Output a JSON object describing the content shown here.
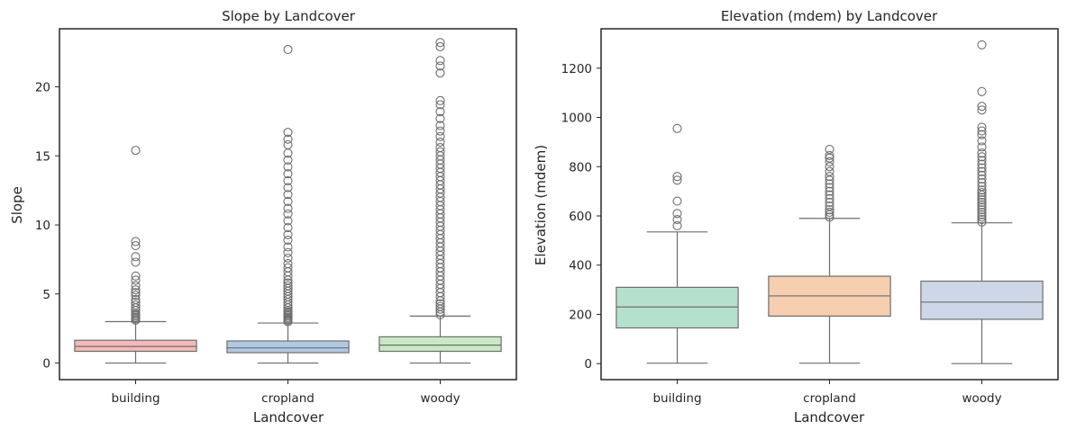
{
  "chart_data": [
    {
      "type": "box",
      "title": "Slope by Landcover",
      "xlabel": "Landcover",
      "ylabel": "Slope",
      "ylim": [
        -1.2,
        24.2
      ],
      "yticks": [
        0,
        5,
        10,
        15,
        20
      ],
      "categories": [
        "building",
        "cropland",
        "woody"
      ],
      "colors": [
        "#f4b9b8",
        "#b0c9e2",
        "#c9e9c4"
      ],
      "boxes": [
        {
          "category": "building",
          "whisker_low": 0.0,
          "q1": 0.85,
          "median": 1.2,
          "q3": 1.65,
          "whisker_high": 3.0,
          "outliers": [
            3.1,
            3.2,
            3.3,
            3.4,
            3.5,
            3.6,
            3.8,
            4.0,
            4.2,
            4.4,
            4.6,
            4.9,
            5.1,
            5.3,
            5.6,
            6.0,
            6.3,
            7.3,
            7.7,
            8.5,
            8.8,
            15.4
          ]
        },
        {
          "category": "cropland",
          "whisker_low": 0.0,
          "q1": 0.75,
          "median": 1.1,
          "q3": 1.6,
          "whisker_high": 2.9,
          "outliers": [
            3.0,
            3.1,
            3.2,
            3.3,
            3.4,
            3.5,
            3.6,
            3.7,
            3.8,
            4.0,
            4.2,
            4.4,
            4.6,
            4.8,
            5.0,
            5.2,
            5.4,
            5.6,
            5.8,
            6.0,
            6.3,
            6.6,
            6.9,
            7.2,
            7.6,
            8.0,
            8.4,
            8.9,
            9.3,
            9.8,
            10.3,
            10.8,
            11.2,
            11.7,
            12.2,
            12.7,
            13.2,
            13.7,
            14.2,
            14.7,
            15.2,
            15.8,
            16.2,
            16.7,
            22.7
          ]
        },
        {
          "category": "woody",
          "whisker_low": 0.0,
          "q1": 0.85,
          "median": 1.3,
          "q3": 1.9,
          "whisker_high": 3.4,
          "outliers": [
            3.5,
            3.7,
            3.9,
            4.1,
            4.3,
            4.5,
            4.8,
            5.1,
            5.4,
            5.7,
            6.0,
            6.3,
            6.6,
            6.9,
            7.2,
            7.5,
            7.8,
            8.1,
            8.4,
            8.7,
            9.0,
            9.3,
            9.6,
            9.9,
            10.2,
            10.5,
            10.8,
            11.1,
            11.4,
            11.7,
            12.0,
            12.3,
            12.6,
            12.9,
            13.2,
            13.5,
            13.8,
            14.1,
            14.4,
            14.7,
            15.0,
            15.3,
            15.6,
            16.0,
            16.4,
            16.8,
            17.2,
            17.7,
            18.2,
            18.7,
            19.0,
            21.0,
            21.5,
            21.9,
            22.9,
            23.2
          ]
        }
      ]
    },
    {
      "type": "box",
      "title": "Elevation (mdem) by Landcover",
      "xlabel": "Landcover",
      "ylabel": "Elevation (mdem)",
      "ylim": [
        -65,
        1360
      ],
      "yticks": [
        0,
        200,
        400,
        600,
        800,
        1000,
        1200
      ],
      "categories": [
        "building",
        "cropland",
        "woody"
      ],
      "colors": [
        "#b5e0cd",
        "#f6ceb0",
        "#ced7e8"
      ],
      "boxes": [
        {
          "category": "building",
          "whisker_low": 2,
          "q1": 145,
          "median": 230,
          "q3": 310,
          "whisker_high": 535,
          "outliers": [
            560,
            585,
            610,
            660,
            745,
            760,
            955
          ]
        },
        {
          "category": "cropland",
          "whisker_low": 2,
          "q1": 193,
          "median": 275,
          "q3": 355,
          "whisker_high": 590,
          "outliers": [
            595,
            605,
            615,
            625,
            640,
            655,
            670,
            685,
            700,
            715,
            730,
            745,
            760,
            780,
            800,
            820,
            835,
            845,
            870
          ]
        },
        {
          "category": "woody",
          "whisker_low": 0,
          "q1": 180,
          "median": 250,
          "q3": 335,
          "whisker_high": 572,
          "outliers": [
            575,
            585,
            595,
            605,
            615,
            625,
            635,
            645,
            655,
            665,
            675,
            685,
            695,
            705,
            720,
            735,
            750,
            765,
            780,
            795,
            810,
            825,
            840,
            855,
            880,
            905,
            930,
            945,
            960,
            1030,
            1045,
            1105,
            1295
          ]
        }
      ]
    }
  ]
}
